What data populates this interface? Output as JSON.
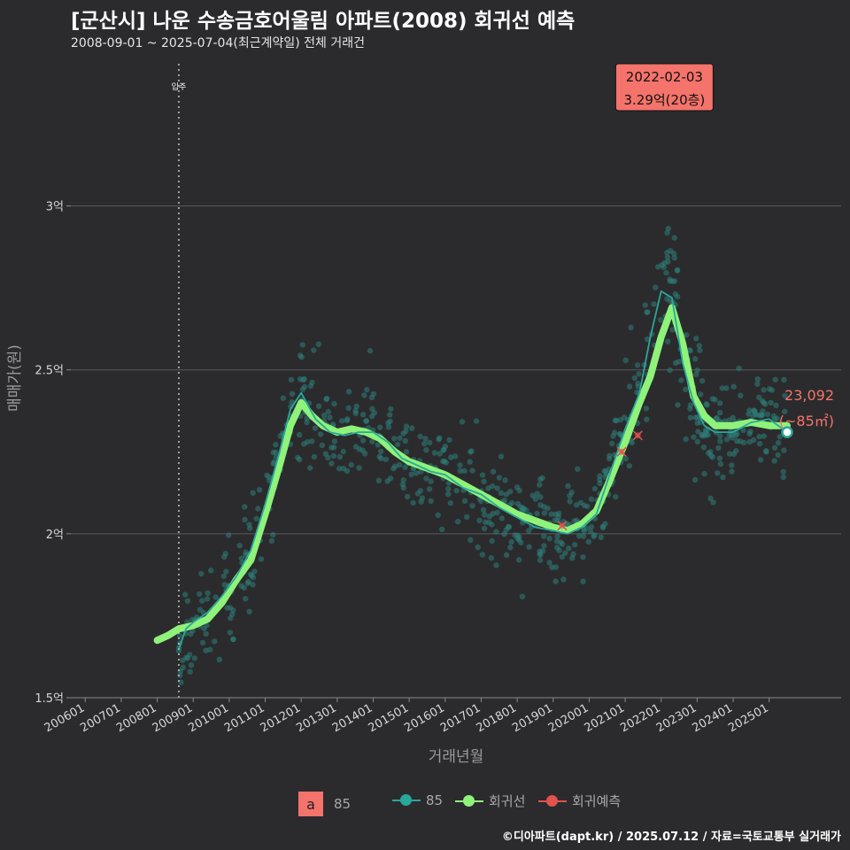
{
  "title": "[군산시] 나운 수송금호어울림 아파트(2008) 회귀선 예측",
  "subtitle": "2008-09-01 ~ 2025-07-04(최근계약일) 전체 거래건",
  "footer": "©디아파트(dapt.kr) / 2025.07.12 / 자료=국토교통부 실거래가",
  "colors": {
    "background": "#2b2b2d",
    "grid": "#5a5a5e",
    "points": "#2e7f7a",
    "trend85": "#2aa79b",
    "regression": "#8ff27a",
    "forecast": "#e0524c",
    "annotation_bg": "#f4736b",
    "end_label": "#f4736b"
  },
  "legend": {
    "a_symbol": "a",
    "a_label": "85",
    "items": [
      {
        "key": "trend85",
        "label": "85",
        "color": "#2aa79b"
      },
      {
        "key": "regression",
        "label": "회귀선",
        "color": "#8ff27a"
      },
      {
        "key": "forecast",
        "label": "회귀예측",
        "color": "#e0524c"
      }
    ]
  },
  "chart_data": {
    "type": "scatter",
    "xlabel": "거래년월",
    "ylabel": "매매가(원)",
    "x_domain": [
      2005.6,
      2027.0
    ],
    "ylim": [
      1.5,
      3.45
    ],
    "y_ticks": [
      {
        "value": 1.5,
        "label": "1.5억"
      },
      {
        "value": 2.0,
        "label": "2억"
      },
      {
        "value": 2.5,
        "label": "2.5억"
      },
      {
        "value": 3.0,
        "label": "3억"
      }
    ],
    "x_ticks": [
      {
        "value": 2006.0,
        "label": "200601"
      },
      {
        "value": 2007.0,
        "label": "200701"
      },
      {
        "value": 2008.0,
        "label": "200801"
      },
      {
        "value": 2009.0,
        "label": "200901"
      },
      {
        "value": 2010.0,
        "label": "201001"
      },
      {
        "value": 2011.0,
        "label": "201101"
      },
      {
        "value": 2012.0,
        "label": "201201"
      },
      {
        "value": 2013.0,
        "label": "201301"
      },
      {
        "value": 2014.0,
        "label": "201401"
      },
      {
        "value": 2015.0,
        "label": "201501"
      },
      {
        "value": 2016.0,
        "label": "201601"
      },
      {
        "value": 2017.0,
        "label": "201701"
      },
      {
        "value": 2018.0,
        "label": "201801"
      },
      {
        "value": 2019.0,
        "label": "201901"
      },
      {
        "value": 2020.0,
        "label": "202001"
      },
      {
        "value": 2021.0,
        "label": "202101"
      },
      {
        "value": 2022.0,
        "label": "202201"
      },
      {
        "value": 2023.0,
        "label": "202301"
      },
      {
        "value": 2024.0,
        "label": "202401"
      },
      {
        "value": 2025.0,
        "label": "202501"
      }
    ],
    "move_in": {
      "x": 2008.6,
      "label": "입주"
    },
    "annotation": {
      "x": 2022.09,
      "y": 3.29,
      "date": "2022-02-03",
      "text": "3.29억(20층)"
    },
    "end_label": {
      "x": 2025.5,
      "y": 2.31,
      "value": "23,092",
      "area": "(~85㎡)"
    },
    "regression_line": [
      [
        2008.0,
        1.675
      ],
      [
        2008.3,
        1.69
      ],
      [
        2008.6,
        1.71
      ],
      [
        2009.0,
        1.72
      ],
      [
        2009.4,
        1.74
      ],
      [
        2009.8,
        1.79
      ],
      [
        2010.2,
        1.86
      ],
      [
        2010.6,
        1.92
      ],
      [
        2011.0,
        2.06
      ],
      [
        2011.4,
        2.21
      ],
      [
        2011.7,
        2.33
      ],
      [
        2012.0,
        2.4
      ],
      [
        2012.3,
        2.36
      ],
      [
        2012.6,
        2.33
      ],
      [
        2013.0,
        2.31
      ],
      [
        2013.4,
        2.32
      ],
      [
        2013.8,
        2.31
      ],
      [
        2014.2,
        2.29
      ],
      [
        2014.6,
        2.25
      ],
      [
        2015.0,
        2.22
      ],
      [
        2015.5,
        2.2
      ],
      [
        2016.0,
        2.18
      ],
      [
        2016.5,
        2.15
      ],
      [
        2017.0,
        2.12
      ],
      [
        2017.5,
        2.09
      ],
      [
        2018.0,
        2.06
      ],
      [
        2018.5,
        2.04
      ],
      [
        2019.0,
        2.02
      ],
      [
        2019.4,
        2.01
      ],
      [
        2019.8,
        2.03
      ],
      [
        2020.2,
        2.07
      ],
      [
        2020.6,
        2.17
      ],
      [
        2021.0,
        2.28
      ],
      [
        2021.4,
        2.4
      ],
      [
        2021.7,
        2.48
      ],
      [
        2022.0,
        2.6
      ],
      [
        2022.3,
        2.69
      ],
      [
        2022.6,
        2.58
      ],
      [
        2022.9,
        2.42
      ],
      [
        2023.2,
        2.36
      ],
      [
        2023.5,
        2.33
      ],
      [
        2024.0,
        2.33
      ],
      [
        2024.5,
        2.34
      ],
      [
        2025.0,
        2.33
      ],
      [
        2025.5,
        2.33
      ]
    ],
    "trend_85": [
      [
        2008.6,
        1.65
      ],
      [
        2008.8,
        1.71
      ],
      [
        2009.0,
        1.73
      ],
      [
        2009.4,
        1.76
      ],
      [
        2009.8,
        1.81
      ],
      [
        2010.2,
        1.87
      ],
      [
        2010.6,
        1.95
      ],
      [
        2011.0,
        2.09
      ],
      [
        2011.4,
        2.25
      ],
      [
        2011.7,
        2.38
      ],
      [
        2012.0,
        2.43
      ],
      [
        2012.4,
        2.35
      ],
      [
        2012.8,
        2.31
      ],
      [
        2013.2,
        2.3
      ],
      [
        2013.6,
        2.31
      ],
      [
        2014.0,
        2.31
      ],
      [
        2014.4,
        2.28
      ],
      [
        2014.8,
        2.23
      ],
      [
        2015.2,
        2.21
      ],
      [
        2015.6,
        2.19
      ],
      [
        2016.0,
        2.18
      ],
      [
        2016.5,
        2.14
      ],
      [
        2017.0,
        2.12
      ],
      [
        2017.5,
        2.08
      ],
      [
        2018.0,
        2.05
      ],
      [
        2018.5,
        2.02
      ],
      [
        2019.0,
        2.01
      ],
      [
        2019.4,
        2.0
      ],
      [
        2019.8,
        2.02
      ],
      [
        2020.2,
        2.06
      ],
      [
        2020.6,
        2.19
      ],
      [
        2021.0,
        2.32
      ],
      [
        2021.4,
        2.43
      ],
      [
        2021.7,
        2.6
      ],
      [
        2022.0,
        2.74
      ],
      [
        2022.3,
        2.72
      ],
      [
        2022.6,
        2.52
      ],
      [
        2022.9,
        2.4
      ],
      [
        2023.2,
        2.33
      ],
      [
        2023.5,
        2.31
      ],
      [
        2024.0,
        2.31
      ],
      [
        2024.5,
        2.34
      ],
      [
        2025.0,
        2.35
      ],
      [
        2025.5,
        2.31
      ]
    ],
    "forecast_points": [
      [
        2019.25,
        2.025
      ],
      [
        2020.9,
        2.25
      ],
      [
        2021.35,
        2.3
      ]
    ],
    "end_point": [
      2025.5,
      2.31
    ]
  }
}
